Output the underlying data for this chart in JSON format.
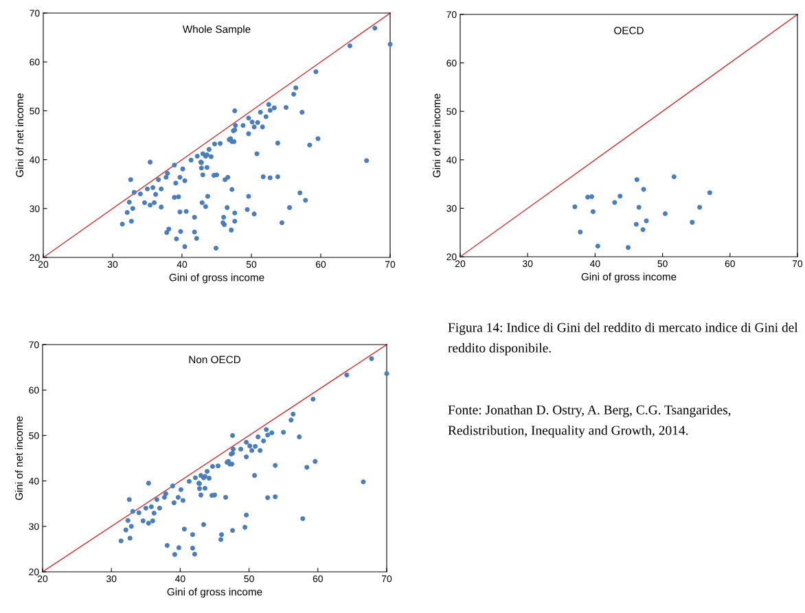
{
  "chart_data": [
    {
      "type": "scatter",
      "title": "Whole Sample",
      "xlabel": "Gini of gross income",
      "ylabel": "Gini of net income",
      "xlim": [
        20,
        70
      ],
      "ylim": [
        20,
        70
      ],
      "xticks": [
        20,
        30,
        40,
        50,
        60,
        70
      ],
      "yticks": [
        20,
        30,
        40,
        50,
        60,
        70
      ],
      "grid": false,
      "series": [
        {
          "type": "line",
          "marker": "none",
          "color": "#d03c3c",
          "x": [
            20,
            70
          ],
          "values": [
            20,
            70
          ]
        },
        {
          "marker": "circle",
          "color": "#4a7ebb",
          "x": [
            31.4,
            32.1,
            32.7,
            32.4,
            32.9,
            32.6,
            33.1,
            34.0,
            34.6,
            35.4,
            35.4,
            35.0,
            36.0,
            35.8,
            36.2,
            36.6,
            37.0,
            37.7,
            38.1,
            37.9,
            38.9,
            39.2,
            39.1,
            39.8,
            39.7,
            40.1,
            40.4,
            40.6,
            41.3,
            41.8,
            41.8,
            42.1,
            42.2,
            42.7,
            43.0,
            43.4,
            43.6,
            43.6,
            43.9,
            44.2,
            44.7,
            45.0,
            45.5,
            45.9,
            46.0,
            46.6,
            46.8,
            47.2,
            47.6,
            47.6,
            47.6,
            43.0,
            47.7,
            47.4,
            47.0,
            47.5,
            48.8,
            49.6,
            49.6,
            50.1,
            50.4,
            50.9,
            50.8,
            51.3,
            51.6,
            52.1,
            52.5,
            52.7,
            53.3,
            52.7,
            53.8,
            53.8,
            55.0,
            56.1,
            56.4,
            57.3,
            57.8,
            58.4,
            59.6,
            59.3,
            64.2,
            66.6,
            67.8,
            70.0,
            49.6,
            49.4,
            44.6,
            43.4,
            42.8,
            42.8,
            37.0,
            37.8,
            38.9,
            39.5,
            39.7,
            40.4,
            42.9,
            43.7,
            44.9,
            46.2,
            46.1,
            46.5,
            47.2,
            47.1,
            47.6,
            50.4,
            51.7,
            54.4,
            55.5,
            57.0
          ],
          "values": [
            26.8,
            29.2,
            27.4,
            31.3,
            30.0,
            35.9,
            33.3,
            33.0,
            31.2,
            39.5,
            30.7,
            34.0,
            31.2,
            34.3,
            32.9,
            35.9,
            34.0,
            36.4,
            25.8,
            37.2,
            38.9,
            23.8,
            35.2,
            25.3,
            36.4,
            38.1,
            35.7,
            29.4,
            39.9,
            28.2,
            25.2,
            23.9,
            40.7,
            39.5,
            36.9,
            30.4,
            38.4,
            41.0,
            42.1,
            40.6,
            43.2,
            36.9,
            43.3,
            27.1,
            28.2,
            36.4,
            44.1,
            43.7,
            50.0,
            46.1,
            29.1,
            41.2,
            47.0,
            45.9,
            44.3,
            43.7,
            47.0,
            48.5,
            45.3,
            47.7,
            46.7,
            47.6,
            41.2,
            49.7,
            46.7,
            48.8,
            51.3,
            50.1,
            50.6,
            36.3,
            43.4,
            36.5,
            50.7,
            53.4,
            54.7,
            49.7,
            31.7,
            43.0,
            44.3,
            58.0,
            63.3,
            39.8,
            66.9,
            63.6,
            32.5,
            29.8,
            36.8,
            40.7,
            39.4,
            38.3,
            30.3,
            25.1,
            32.3,
            32.4,
            29.3,
            22.2,
            31.2,
            32.5,
            21.9,
            35.9,
            26.7,
            30.2,
            33.9,
            25.6,
            27.4,
            28.9,
            36.5,
            27.1,
            30.2,
            33.2
          ]
        }
      ]
    },
    {
      "type": "scatter",
      "title": "OECD",
      "xlabel": "Gini of gross income",
      "ylabel": "Gini of net income",
      "xlim": [
        20,
        70
      ],
      "ylim": [
        20,
        70
      ],
      "xticks": [
        20,
        30,
        40,
        50,
        60,
        70
      ],
      "yticks": [
        20,
        30,
        40,
        50,
        60,
        70
      ],
      "grid": false,
      "series": [
        {
          "type": "line",
          "marker": "none",
          "color": "#d03c3c",
          "x": [
            20,
            70
          ],
          "values": [
            20,
            70
          ]
        },
        {
          "marker": "circle",
          "color": "#4a7ebb",
          "x": [
            37.0,
            37.8,
            38.9,
            39.5,
            39.7,
            40.4,
            42.9,
            43.7,
            44.9,
            46.2,
            46.1,
            46.5,
            47.2,
            47.1,
            47.6,
            50.4,
            51.7,
            54.4,
            55.5,
            57.0
          ],
          "values": [
            30.3,
            25.1,
            32.3,
            32.4,
            29.3,
            22.2,
            31.2,
            32.5,
            21.9,
            35.9,
            26.7,
            30.2,
            33.9,
            25.6,
            27.4,
            28.9,
            36.5,
            27.1,
            30.2,
            33.2
          ]
        }
      ]
    },
    {
      "type": "scatter",
      "title": "Non OECD",
      "xlabel": "Gini of gross income",
      "ylabel": "Gini of net income",
      "xlim": [
        20,
        70
      ],
      "ylim": [
        20,
        70
      ],
      "xticks": [
        20,
        30,
        40,
        50,
        60,
        70
      ],
      "yticks": [
        20,
        30,
        40,
        50,
        60,
        70
      ],
      "grid": false,
      "annotations": [
        "Figura 14: Indice di Gini del reddito di mercato indice di Gini del reddito disponibile.",
        "Fonte: Jonathan D. Ostry, A. Berg, C.G. Tsangarides, Redistribution, Inequality and Growth, 2014."
      ],
      "series": [
        {
          "type": "line",
          "marker": "none",
          "color": "#d03c3c",
          "x": [
            20,
            70
          ],
          "values": [
            20,
            70
          ]
        },
        {
          "marker": "circle",
          "color": "#4a7ebb",
          "x": [
            31.4,
            32.1,
            32.7,
            32.4,
            32.9,
            32.6,
            33.1,
            34.0,
            34.6,
            35.4,
            35.4,
            35.0,
            36.0,
            35.8,
            36.2,
            36.6,
            37.0,
            37.7,
            38.1,
            37.9,
            38.9,
            39.2,
            39.1,
            39.8,
            39.7,
            40.1,
            40.4,
            40.6,
            41.3,
            41.8,
            41.8,
            42.1,
            42.2,
            42.7,
            43.0,
            43.4,
            43.6,
            43.6,
            43.9,
            44.2,
            44.7,
            45.0,
            45.5,
            45.9,
            46.0,
            46.6,
            46.8,
            47.2,
            47.6,
            47.6,
            47.6,
            43.0,
            47.7,
            47.4,
            47.0,
            47.5,
            48.8,
            49.6,
            49.6,
            50.1,
            50.4,
            50.9,
            50.8,
            51.3,
            51.6,
            52.1,
            52.5,
            52.7,
            53.3,
            52.7,
            53.8,
            53.8,
            55.0,
            56.1,
            56.4,
            57.3,
            57.8,
            58.4,
            59.6,
            59.3,
            64.2,
            66.6,
            67.8,
            70.0,
            49.6,
            49.4,
            44.6,
            43.4,
            42.8,
            42.8
          ],
          "values": [
            26.8,
            29.2,
            27.4,
            31.3,
            30.0,
            35.9,
            33.3,
            33.0,
            31.2,
            39.5,
            30.7,
            34.0,
            31.2,
            34.3,
            32.9,
            35.9,
            34.0,
            36.4,
            25.8,
            37.2,
            38.9,
            23.8,
            35.2,
            25.3,
            36.4,
            38.1,
            35.7,
            29.4,
            39.9,
            28.2,
            25.2,
            23.9,
            40.7,
            39.5,
            36.9,
            30.4,
            38.4,
            41.0,
            42.1,
            40.6,
            43.2,
            36.9,
            43.3,
            27.1,
            28.2,
            36.4,
            44.1,
            43.7,
            50.0,
            46.1,
            29.1,
            41.2,
            47.0,
            45.9,
            44.3,
            43.7,
            47.0,
            48.5,
            45.3,
            47.7,
            46.7,
            47.6,
            41.2,
            49.7,
            46.7,
            48.8,
            51.3,
            50.1,
            50.6,
            36.3,
            43.4,
            36.5,
            50.7,
            53.4,
            54.7,
            49.7,
            31.7,
            43.0,
            44.3,
            58.0,
            63.3,
            39.8,
            66.9,
            63.6,
            32.5,
            29.8,
            36.8,
            40.7,
            39.4,
            38.3
          ]
        }
      ]
    }
  ]
}
